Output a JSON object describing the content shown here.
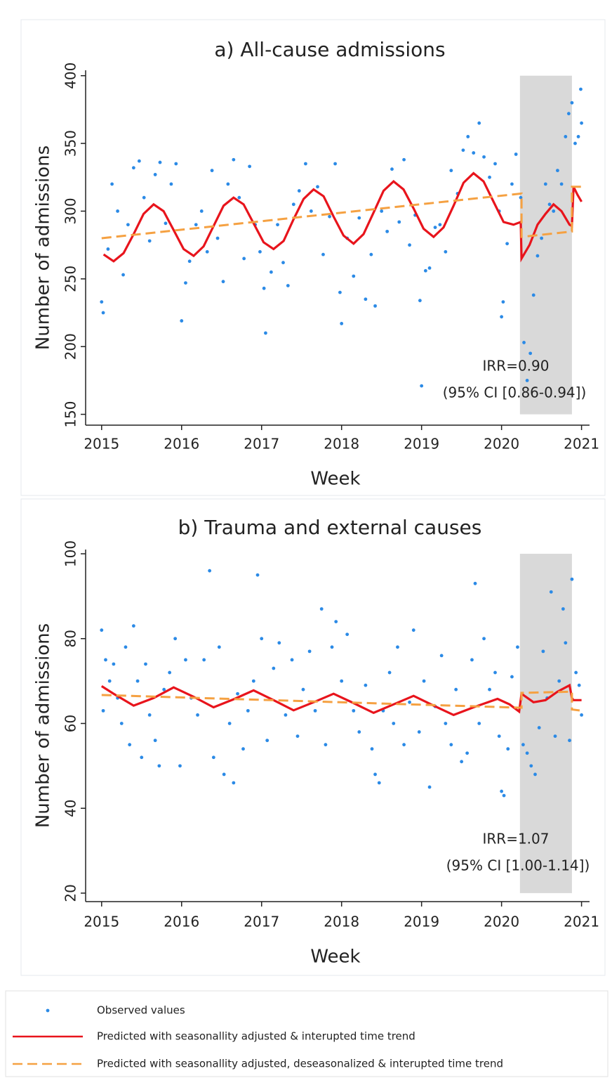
{
  "chart_data": [
    {
      "type": "scatter",
      "title": "a) All-cause admissions",
      "xlabel": "Week",
      "ylabel": "Number of admissions",
      "xlim": [
        2014.8,
        2021.1
      ],
      "xticks": [
        2015,
        2016,
        2017,
        2018,
        2019,
        2020,
        2021
      ],
      "ylim": [
        142,
        404
      ],
      "yticks": [
        150,
        200,
        250,
        300,
        350,
        400
      ],
      "shade": [
        2020.23,
        2020.88
      ],
      "annotations": [
        "IRR=0.90",
        "(95% CI [0.86-0.94])"
      ],
      "series": [
        {
          "name": "Observed values",
          "type": "scatter",
          "color": "#2b8ae6",
          "x": [
            2015.0,
            2015.02,
            2015.08,
            2015.13,
            2015.2,
            2015.27,
            2015.33,
            2015.4,
            2015.47,
            2015.53,
            2015.6,
            2015.67,
            2015.73,
            2015.8,
            2015.87,
            2015.93,
            2016.0,
            2016.05,
            2016.1,
            2016.18,
            2016.25,
            2016.32,
            2016.38,
            2016.45,
            2016.52,
            2016.58,
            2016.65,
            2016.72,
            2016.78,
            2016.85,
            2016.92,
            2016.98,
            2017.03,
            2017.05,
            2017.12,
            2017.2,
            2017.27,
            2017.33,
            2017.4,
            2017.47,
            2017.55,
            2017.62,
            2017.7,
            2017.77,
            2017.85,
            2017.92,
            2017.98,
            2018.0,
            2018.07,
            2018.15,
            2018.22,
            2018.3,
            2018.37,
            2018.42,
            2018.5,
            2018.57,
            2018.63,
            2018.72,
            2018.78,
            2018.85,
            2018.92,
            2018.98,
            2019.0,
            2019.05,
            2019.1,
            2019.17,
            2019.23,
            2019.3,
            2019.37,
            2019.45,
            2019.52,
            2019.58,
            2019.65,
            2019.72,
            2019.78,
            2019.85,
            2019.92,
            2019.97,
            2020.0,
            2020.02,
            2020.07,
            2020.13,
            2020.18,
            2020.24,
            2020.28,
            2020.32,
            2020.36,
            2020.4,
            2020.45,
            2020.5,
            2020.55,
            2020.6,
            2020.65,
            2020.7,
            2020.75,
            2020.8,
            2020.84,
            2020.88,
            2020.92,
            2020.96,
            2020.99,
            2021.0
          ],
          "values": [
            233,
            225,
            272,
            320,
            300,
            253,
            290,
            332,
            337,
            310,
            278,
            327,
            336,
            291,
            320,
            335,
            219,
            247,
            263,
            290,
            300,
            270,
            330,
            280,
            248,
            320,
            338,
            310,
            265,
            333,
            290,
            270,
            243,
            210,
            255,
            290,
            262,
            245,
            305,
            315,
            335,
            300,
            318,
            268,
            296,
            335,
            240,
            217,
            280,
            252,
            295,
            235,
            268,
            230,
            300,
            285,
            331,
            292,
            338,
            275,
            297,
            234,
            171,
            256,
            258,
            288,
            290,
            270,
            330,
            313,
            345,
            355,
            343,
            365,
            340,
            325,
            335,
            300,
            222,
            233,
            276,
            320,
            342,
            310,
            203,
            175,
            195,
            238,
            267,
            280,
            320,
            305,
            300,
            330,
            320,
            355,
            372,
            380,
            350,
            355,
            390,
            365
          ]
        },
        {
          "name": "Predicted with seasonallity adjusted & interupted time trend",
          "type": "line",
          "color": "#e8141c",
          "x": [
            2015.025,
            2015.15,
            2015.275,
            2015.4,
            2015.525,
            2015.65,
            2015.775,
            2015.9,
            2016.025,
            2016.15,
            2016.275,
            2016.4,
            2016.525,
            2016.65,
            2016.775,
            2016.9,
            2017.025,
            2017.15,
            2017.275,
            2017.4,
            2017.525,
            2017.65,
            2017.775,
            2017.9,
            2018.025,
            2018.15,
            2018.275,
            2018.4,
            2018.525,
            2018.65,
            2018.775,
            2018.9,
            2019.025,
            2019.15,
            2019.275,
            2019.4,
            2019.525,
            2019.65,
            2019.775,
            2019.9,
            2020.025,
            2020.15,
            2020.24,
            2020.25,
            2020.35,
            2020.45,
            2020.55,
            2020.65,
            2020.75,
            2020.85,
            2020.88,
            2020.9,
            2020.95,
            2021.0
          ],
          "values": [
            268,
            263,
            269,
            283,
            298,
            305,
            300,
            286,
            272,
            267,
            274,
            289,
            304,
            310,
            305,
            291,
            277,
            272,
            278,
            294,
            309,
            316,
            311,
            296,
            282,
            276,
            283,
            299,
            315,
            322,
            316,
            302,
            287,
            281,
            288,
            304,
            321,
            328,
            322,
            307,
            292,
            290,
            292,
            265,
            275,
            290,
            298,
            305,
            300,
            290,
            289,
            318,
            312,
            307
          ]
        },
        {
          "name": "Predicted with seasonallity adjusted, deseasonalized & interupted time trend",
          "type": "line",
          "dashed": true,
          "color": "#f5a142",
          "x": [
            2015.0,
            2020.25,
            2020.25,
            2020.88,
            2020.88,
            2021.0
          ],
          "values": [
            280,
            313,
            281,
            285,
            318,
            318
          ]
        }
      ]
    },
    {
      "type": "scatter",
      "title": "b) Trauma and external causes",
      "xlabel": "Week",
      "ylabel": "Number of admissions",
      "xlim": [
        2014.8,
        2021.1
      ],
      "xticks": [
        2015,
        2016,
        2017,
        2018,
        2019,
        2020,
        2021
      ],
      "ylim": [
        18,
        101
      ],
      "yticks": [
        20,
        40,
        60,
        80,
        100
      ],
      "shade": [
        2020.23,
        2020.88
      ],
      "annotations": [
        "IRR=1.07",
        "(95% CI [1.00-1.14])"
      ],
      "series": [
        {
          "type": "scatter",
          "color": "#2b8ae6",
          "x": [
            2015.0,
            2015.02,
            2015.05,
            2015.1,
            2015.15,
            2015.2,
            2015.25,
            2015.3,
            2015.35,
            2015.4,
            2015.45,
            2015.5,
            2015.55,
            2015.6,
            2015.67,
            2015.72,
            2015.78,
            2015.85,
            2015.92,
            2015.98,
            2016.05,
            2016.12,
            2016.2,
            2016.28,
            2016.35,
            2016.4,
            2016.47,
            2016.53,
            2016.6,
            2016.65,
            2016.7,
            2016.77,
            2016.83,
            2016.9,
            2016.95,
            2017.0,
            2017.07,
            2017.15,
            2017.22,
            2017.3,
            2017.38,
            2017.45,
            2017.52,
            2017.6,
            2017.67,
            2017.75,
            2017.8,
            2017.88,
            2017.93,
            2018.0,
            2018.07,
            2018.15,
            2018.22,
            2018.3,
            2018.38,
            2018.42,
            2018.47,
            2018.52,
            2018.6,
            2018.65,
            2018.7,
            2018.78,
            2018.85,
            2018.9,
            2018.97,
            2019.03,
            2019.1,
            2019.17,
            2019.25,
            2019.3,
            2019.37,
            2019.43,
            2019.5,
            2019.57,
            2019.63,
            2019.67,
            2019.72,
            2019.78,
            2019.85,
            2019.92,
            2019.97,
            2020.0,
            2020.03,
            2020.08,
            2020.13,
            2020.2,
            2020.27,
            2020.32,
            2020.37,
            2020.42,
            2020.47,
            2020.52,
            2020.57,
            2020.62,
            2020.67,
            2020.72,
            2020.77,
            2020.8,
            2020.85,
            2020.88,
            2020.93,
            2020.97,
            2021.0
          ],
          "values": [
            82,
            63,
            75,
            70,
            74,
            66,
            60,
            78,
            55,
            83,
            70,
            52,
            74,
            62,
            56,
            50,
            68,
            72,
            80,
            50,
            75,
            66,
            62,
            75,
            96,
            52,
            78,
            48,
            60,
            46,
            67,
            54,
            63,
            70,
            95,
            80,
            56,
            73,
            79,
            62,
            75,
            57,
            68,
            77,
            63,
            87,
            55,
            78,
            84,
            70,
            81,
            63,
            58,
            69,
            54,
            48,
            46,
            63,
            72,
            60,
            78,
            55,
            65,
            82,
            58,
            70,
            45,
            64,
            76,
            60,
            55,
            68,
            51,
            53,
            75,
            93,
            60,
            80,
            68,
            72,
            57,
            44,
            43,
            54,
            71,
            78,
            55,
            53,
            50,
            48,
            59,
            77,
            66,
            91,
            57,
            70,
            87,
            79,
            56,
            94,
            72,
            69,
            62
          ]
        },
        {
          "type": "line",
          "color": "#e8141c",
          "x": [
            2015.0,
            2015.15,
            2015.4,
            2015.65,
            2015.9,
            2016.15,
            2016.4,
            2016.65,
            2016.9,
            2017.15,
            2017.4,
            2017.65,
            2017.9,
            2018.15,
            2018.4,
            2018.65,
            2018.9,
            2019.15,
            2019.4,
            2019.65,
            2019.95,
            2020.1,
            2020.22,
            2020.25,
            2020.4,
            2020.55,
            2020.7,
            2020.85,
            2020.88,
            2020.9,
            2021.0
          ],
          "values": [
            68.8,
            67,
            64.2,
            66,
            68.5,
            66.3,
            63.8,
            65.7,
            67.8,
            65.5,
            63.1,
            65,
            67,
            64.8,
            62.5,
            64.5,
            66.5,
            64.2,
            62,
            63.8,
            65.8,
            64.5,
            62.8,
            67,
            65,
            65.5,
            67.5,
            69,
            66,
            65.5,
            65.5
          ]
        },
        {
          "type": "line",
          "dashed": true,
          "color": "#f5a142",
          "x": [
            2015.0,
            2020.25,
            2020.25,
            2020.88,
            2020.88,
            2021.0
          ],
          "values": [
            66.7,
            63.7,
            67.2,
            67.5,
            63.3,
            63
          ]
        }
      ]
    }
  ]
}
